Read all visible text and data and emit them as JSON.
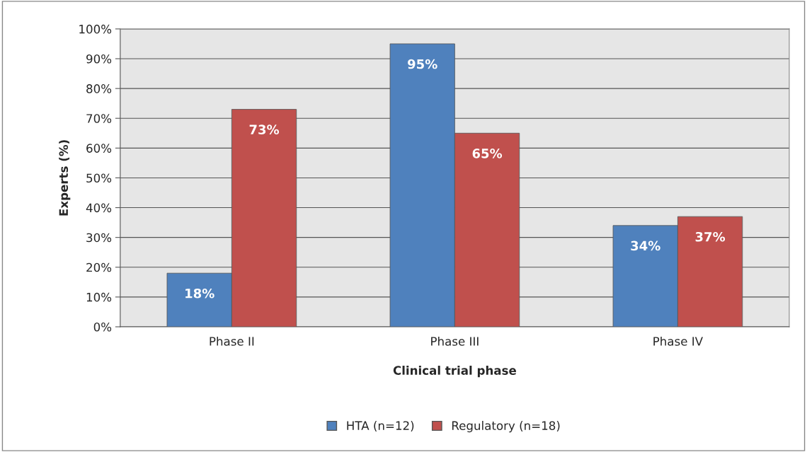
{
  "chart_data": {
    "type": "bar",
    "xlabel": "Clinical trial phase",
    "ylabel": "Experts (%)",
    "categories": [
      "Phase II",
      "Phase III",
      "Phase IV"
    ],
    "series": [
      {
        "name": "HTA (n=12)",
        "color": "#4f81bd",
        "values": [
          18,
          95,
          34
        ],
        "value_labels": [
          "18%",
          "95%",
          "34%"
        ]
      },
      {
        "name": "Regulatory (n=18)",
        "color": "#c0504d",
        "values": [
          73,
          65,
          37
        ],
        "value_labels": [
          "73%",
          "65%",
          "37%"
        ]
      }
    ],
    "ylim": [
      0,
      100
    ],
    "yticks": [
      {
        "value": 0,
        "label": "0%"
      },
      {
        "value": 10,
        "label": "10%"
      },
      {
        "value": 20,
        "label": "20%"
      },
      {
        "value": 30,
        "label": "30%"
      },
      {
        "value": 40,
        "label": "40%"
      },
      {
        "value": 50,
        "label": "50%"
      },
      {
        "value": 60,
        "label": "60%"
      },
      {
        "value": 70,
        "label": "70%"
      },
      {
        "value": 80,
        "label": "80%"
      },
      {
        "value": 90,
        "label": "90%"
      },
      {
        "value": 100,
        "label": "100%"
      }
    ],
    "grid": "y",
    "legend": "bottom"
  }
}
